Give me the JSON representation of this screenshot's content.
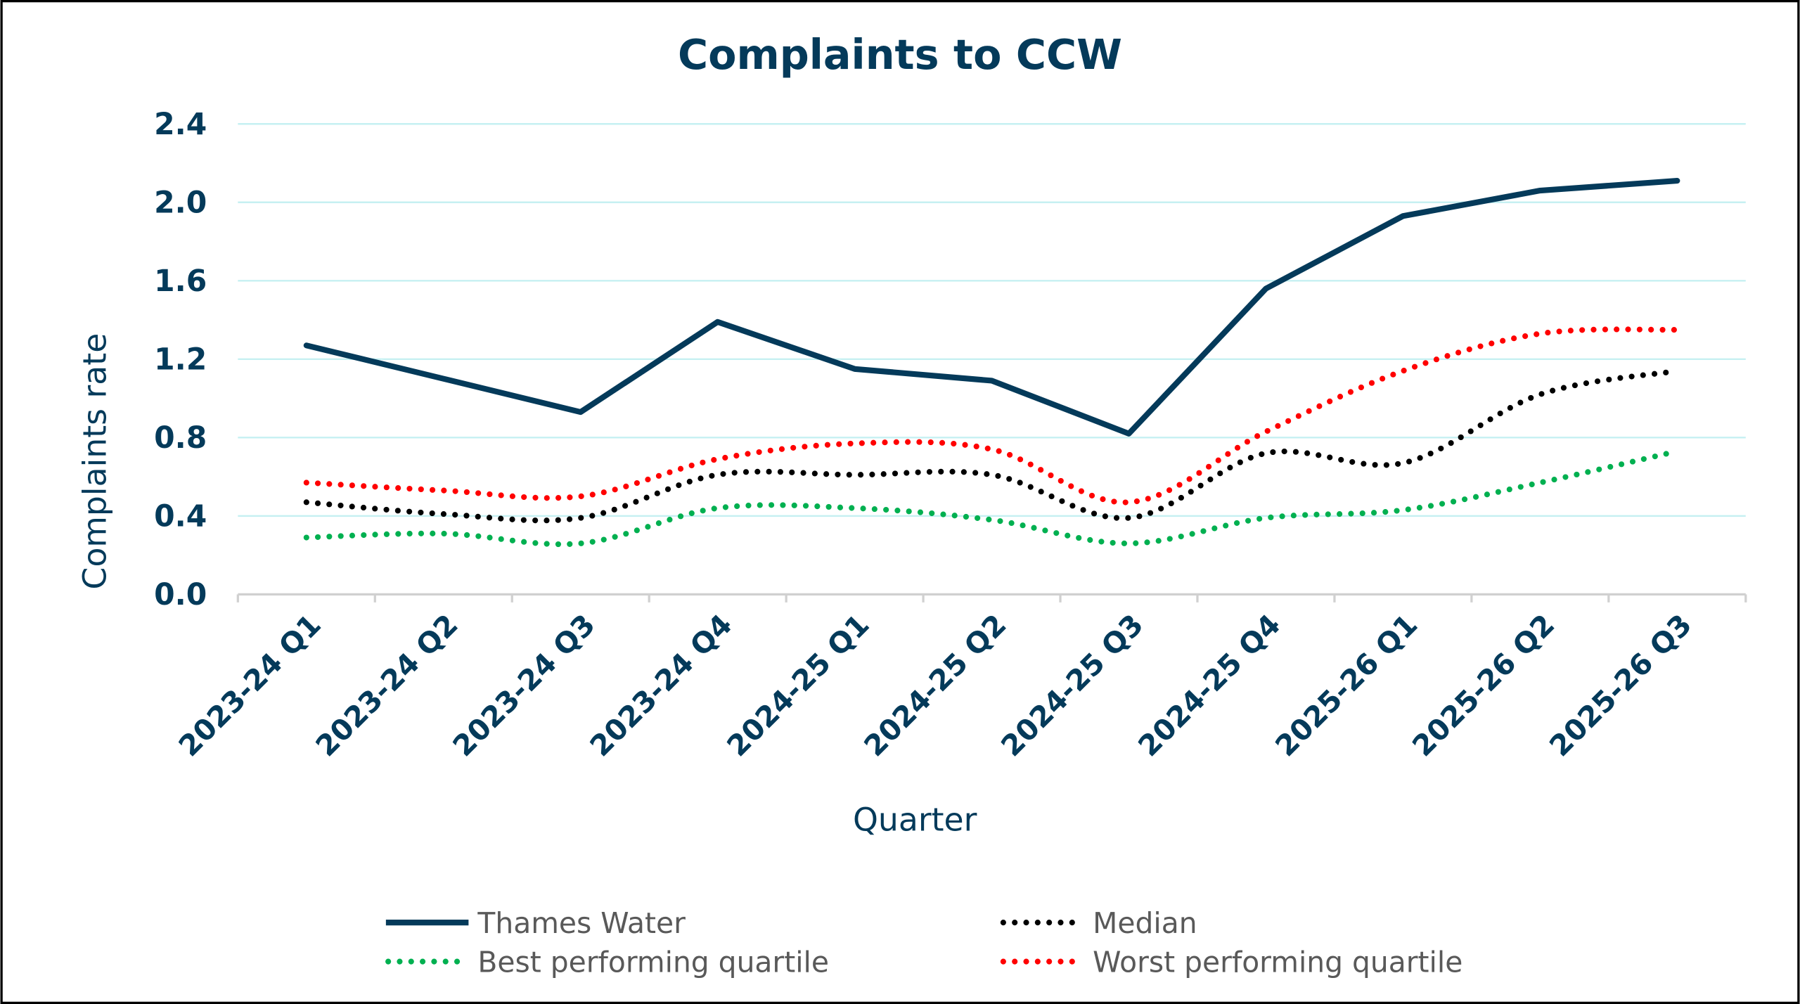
{
  "chart_data": {
    "type": "line",
    "title": "Complaints to CCW",
    "xlabel": "Quarter",
    "ylabel": "Complaints rate",
    "ylim": [
      0,
      2.4
    ],
    "yticks": [
      "0.0",
      "0.4",
      "0.8",
      "1.2",
      "1.6",
      "2.0",
      "2.4"
    ],
    "grid": true,
    "legend_position": "bottom",
    "categories": [
      "2023-24 Q1",
      "2023-24 Q2",
      "2023-24 Q3",
      "2023-24 Q4",
      "2024-25 Q1",
      "2024-25 Q2",
      "2024-25 Q3",
      "2024-25 Q4",
      "2025-26 Q1",
      "2025-26 Q2",
      "2025-26 Q3"
    ],
    "series": [
      {
        "name": "Thames Water",
        "color": "#043a5a",
        "style": "solid",
        "values": [
          1.27,
          1.1,
          0.93,
          1.39,
          1.15,
          1.09,
          0.82,
          1.56,
          1.93,
          2.06,
          2.11
        ]
      },
      {
        "name": "Median",
        "color": "#000000",
        "style": "dotted",
        "values": [
          0.47,
          0.41,
          0.39,
          0.61,
          0.61,
          0.61,
          0.39,
          0.72,
          0.67,
          1.02,
          1.14
        ]
      },
      {
        "name": "Best performing quartile",
        "color": "#00b050",
        "style": "dotted",
        "values": [
          0.29,
          0.31,
          0.26,
          0.44,
          0.44,
          0.38,
          0.26,
          0.39,
          0.43,
          0.57,
          0.73
        ]
      },
      {
        "name": "Worst performing quartile",
        "color": "#ff0000",
        "style": "dotted",
        "values": [
          0.57,
          0.53,
          0.5,
          0.69,
          0.77,
          0.74,
          0.47,
          0.83,
          1.14,
          1.33,
          1.35
        ]
      }
    ]
  }
}
